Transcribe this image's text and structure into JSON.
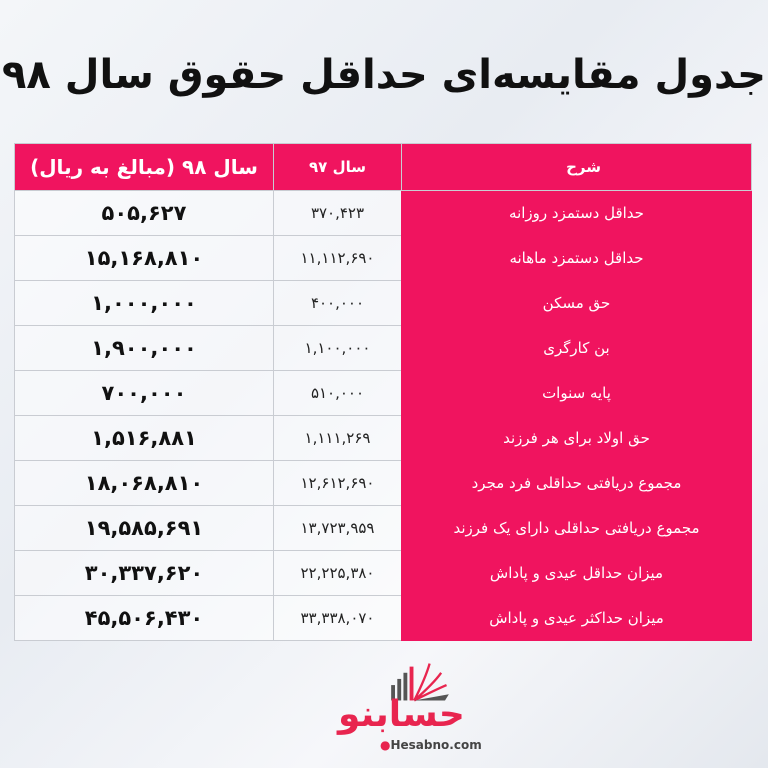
{
  "title": "جدول مقایسه‌ای حداقل حقوق سال ۹۸",
  "table": {
    "headers": [
      "شرح",
      "سال ۹۷",
      "سال ۹۸ (مبالغ به ریال)"
    ],
    "rows": [
      {
        "label": "حداقل دستمزد روزانه",
        "y97": "۳۷۰,۴۲۳",
        "y98": "۵۰۵,۶۲۷"
      },
      {
        "label": "حداقل دستمزد ماهانه",
        "y97": "۱۱,۱۱۲,۶۹۰",
        "y98": "۱۵,۱۶۸,۸۱۰"
      },
      {
        "label": "حق مسکن",
        "y97": "۴۰۰,۰۰۰",
        "y98": "۱,۰۰۰,۰۰۰"
      },
      {
        "label": "بن کارگری",
        "y97": "۱,۱۰۰,۰۰۰",
        "y98": "۱,۹۰۰,۰۰۰"
      },
      {
        "label": "پایه سنوات",
        "y97": "۵۱۰,۰۰۰",
        "y98": "۷۰۰,۰۰۰"
      },
      {
        "label": "حق اولاد برای هر فرزند",
        "y97": "۱,۱۱۱,۲۶۹",
        "y98": "۱,۵۱۶,۸۸۱"
      },
      {
        "label": "مجموع دریافتی حداقلی فرد مجرد",
        "y97": "۱۲,۶۱۲,۶۹۰",
        "y98": "۱۸,۰۶۸,۸۱۰"
      },
      {
        "label": "مجموع دریافتی حداقلی دارای یک فرزند",
        "y97": "۱۳,۷۲۳,۹۵۹",
        "y98": "۱۹,۵۸۵,۶۹۱"
      },
      {
        "label": "میزان حداقل عیدی و پاداش",
        "y97": "۲۲,۲۲۵,۳۸۰",
        "y98": "۳۰,۳۳۷,۶۲۰"
      },
      {
        "label": "میزان حداکثر عیدی و پاداش",
        "y97": "۳۳,۳۳۸,۰۷۰",
        "y98": "۴۵,۵۰۶,۴۳۰"
      }
    ]
  },
  "logo": {
    "name": "حسابنو",
    "url": "Hesabno.com"
  },
  "colors": {
    "accent": "#f0145f",
    "logo": "#e8254f"
  }
}
